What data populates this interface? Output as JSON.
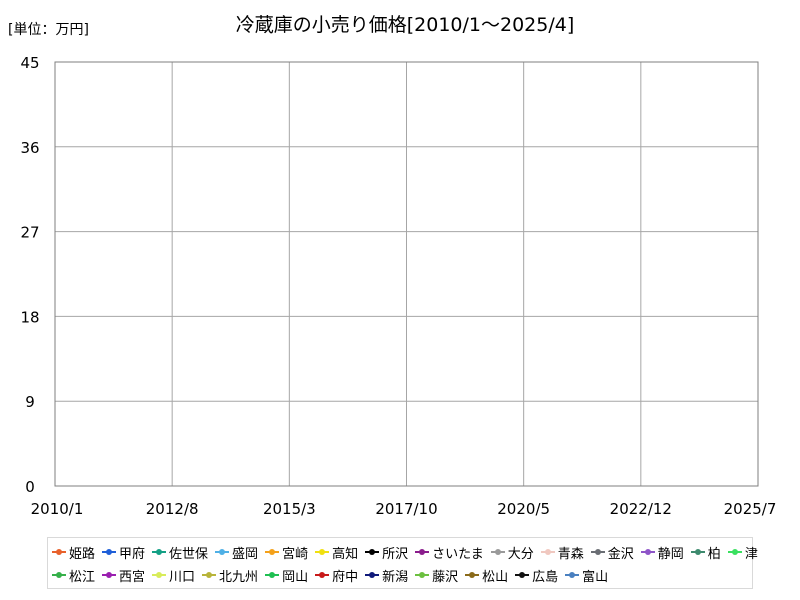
{
  "chart_data": {
    "type": "line",
    "title": "冷蔵庫の小売り価格[2010/1〜2025/4]",
    "unit_label": "[単位：万円]",
    "xlabel": "",
    "ylabel": "",
    "y_ticks": [
      0,
      9,
      18,
      27,
      36,
      45
    ],
    "ylim": [
      0,
      45
    ],
    "x_ticks": [
      "2010/1",
      "2012/8",
      "2015/3",
      "2017/10",
      "2020/5",
      "2022/12",
      "2025/7"
    ],
    "grid": true,
    "legend_position": "bottom",
    "series": [
      {
        "name": "姫路",
        "color": "#e8612c"
      },
      {
        "name": "甲府",
        "color": "#1f5fd8"
      },
      {
        "name": "佐世保",
        "color": "#14a085"
      },
      {
        "name": "盛岡",
        "color": "#4fb0e6"
      },
      {
        "name": "宮崎",
        "color": "#f4a11a"
      },
      {
        "name": "高知",
        "color": "#f0e010"
      },
      {
        "name": "所沢",
        "color": "#000000"
      },
      {
        "name": "さいたま",
        "color": "#8a1c8c"
      },
      {
        "name": "大分",
        "color": "#9a9a9a"
      },
      {
        "name": "青森",
        "color": "#f0c8c0"
      },
      {
        "name": "金沢",
        "color": "#6a6e74"
      },
      {
        "name": "静岡",
        "color": "#8e55c8"
      },
      {
        "name": "柏",
        "color": "#3d8a6e"
      },
      {
        "name": "津",
        "color": "#3ae060"
      },
      {
        "name": "松江",
        "color": "#36b04a"
      },
      {
        "name": "西宮",
        "color": "#9a1fb0"
      },
      {
        "name": "川口",
        "color": "#d8ec5a"
      },
      {
        "name": "北九州",
        "color": "#b8b43a"
      },
      {
        "name": "岡山",
        "color": "#1fbf52"
      },
      {
        "name": "府中",
        "color": "#c81a1a"
      },
      {
        "name": "新潟",
        "color": "#101a7a"
      },
      {
        "name": "藤沢",
        "color": "#6cc040"
      },
      {
        "name": "松山",
        "color": "#8a6a1a"
      },
      {
        "name": "広島",
        "color": "#111111"
      },
      {
        "name": "富山",
        "color": "#4a80c0"
      }
    ]
  }
}
